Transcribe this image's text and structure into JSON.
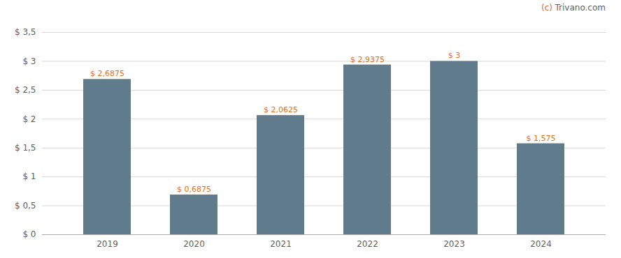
{
  "chart_data": {
    "type": "bar",
    "categories": [
      "2019",
      "2020",
      "2021",
      "2022",
      "2023",
      "2024"
    ],
    "values": [
      2.6875,
      0.6875,
      2.0625,
      2.9375,
      3.0,
      1.575
    ],
    "value_labels": [
      "$ 2,6875",
      "$ 0,6875",
      "$ 2,0625",
      "$ 2,9375",
      "$ 3",
      "$ 1,575"
    ],
    "data_labels": true,
    "color": "#607b8b",
    "ylim": [
      0,
      3.5
    ],
    "yticks": [
      {
        "value": 0,
        "label": "$ 0"
      },
      {
        "value": 0.5,
        "label": "$ 0,5"
      },
      {
        "value": 1.0,
        "label": "$ 1"
      },
      {
        "value": 1.5,
        "label": "$ 1,5"
      },
      {
        "value": 2.0,
        "label": "$ 2"
      },
      {
        "value": 2.5,
        "label": "$ 2,5"
      },
      {
        "value": 3.0,
        "label": "$ 3"
      },
      {
        "value": 3.5,
        "label": "$ 3,5"
      }
    ],
    "grid": true,
    "annotations": [
      {
        "text": "(c)",
        "color": "#e07020"
      },
      {
        "text": "Trivano.com",
        "color": "#606060"
      }
    ]
  }
}
